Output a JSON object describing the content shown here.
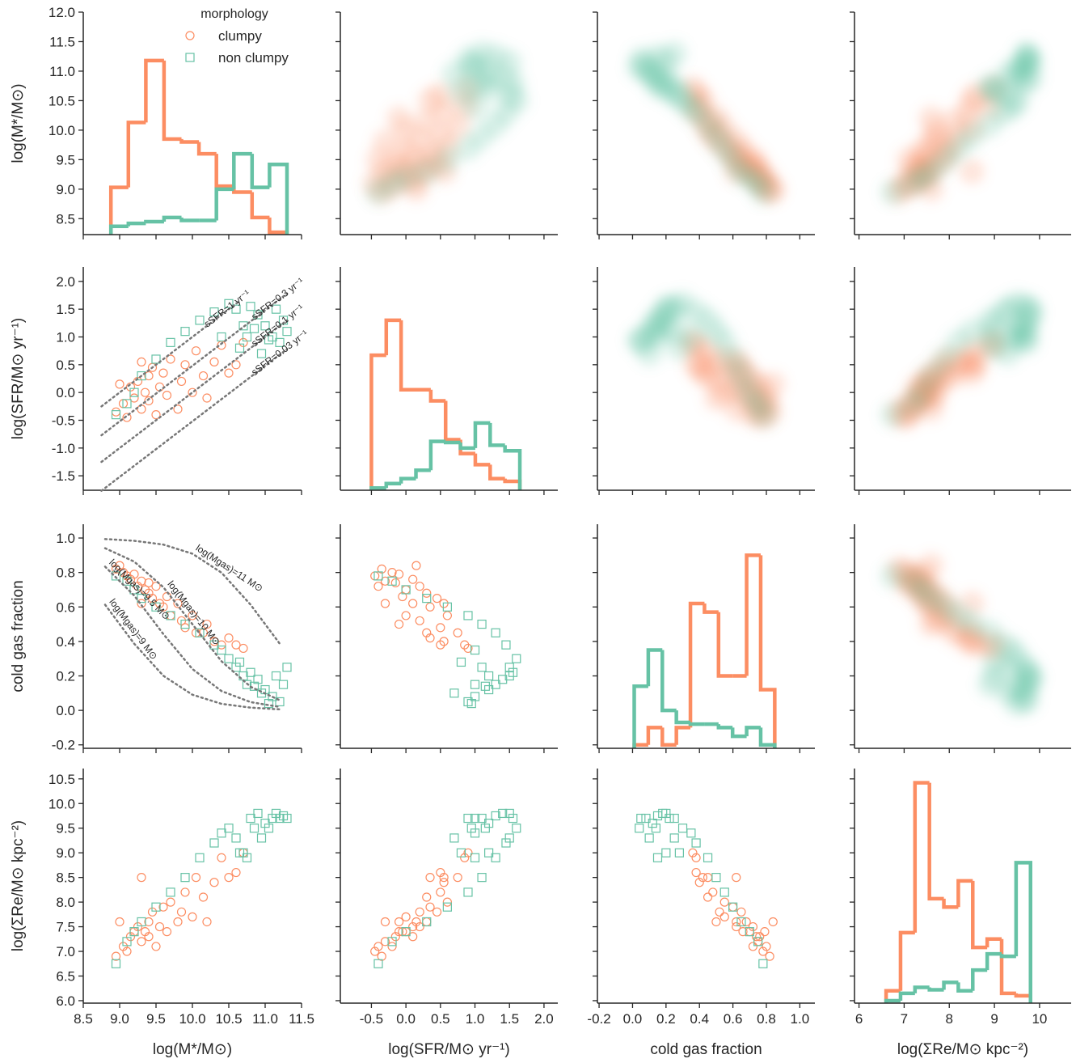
{
  "chart_data": {
    "type": "pairplot",
    "legend_title": "morphology",
    "legend": "upper center",
    "variables": [
      {
        "label": "log(M*/M⊙)",
        "xlim": [
          8.5,
          11.5
        ],
        "ylim": [
          8.23,
          12.0
        ],
        "xticks": [
          8.5,
          {
            "value": 9,
            "label": "9.0"
          },
          9.5,
          {
            "value": 10,
            "label": "10.0"
          },
          10.5,
          {
            "value": 11,
            "label": "11.0"
          },
          11.5
        ],
        "yticks": [
          8.5,
          {
            "value": 9,
            "label": "9.0"
          },
          9.5,
          {
            "value": 10,
            "label": "10.0"
          },
          10.5,
          {
            "value": 11,
            "label": "11.0"
          },
          11.5,
          {
            "value": 12,
            "label": "12.0"
          }
        ],
        "bins": [
          8.88,
          9.12,
          9.36,
          9.61,
          9.85,
          10.09,
          10.33,
          10.57,
          10.82,
          11.06,
          11.3
        ]
      },
      {
        "label": "log(SFR/M⊙ yr⁻¹)",
        "xlim": [
          -0.95,
          2.2
        ],
        "ylim": [
          -1.76,
          2.26
        ],
        "xticks": [
          -0.5,
          {
            "value": 0,
            "label": "0.0"
          },
          0.5,
          {
            "value": 1,
            "label": "1.0"
          },
          1.5,
          {
            "value": 2,
            "label": "2.0"
          }
        ],
        "yticks": [
          -1.5,
          {
            "value": -1,
            "label": "-1.0"
          },
          -0.5,
          {
            "value": 0,
            "label": "0.0"
          },
          0.5,
          {
            "value": 1,
            "label": "1.0"
          },
          1.5,
          {
            "value": 2,
            "label": "2.0"
          }
        ],
        "bins": [
          -0.5,
          -0.285,
          -0.07,
          0.145,
          0.36,
          0.575,
          0.79,
          1.005,
          1.22,
          1.435,
          1.65
        ]
      },
      {
        "label": "cold gas fraction",
        "xlim": [
          -0.21,
          1.09
        ],
        "ylim": [
          -0.22,
          1.08
        ],
        "xticks": [
          -0.2,
          {
            "value": 0,
            "label": "0.0"
          },
          0.2,
          0.4,
          0.6,
          0.8,
          {
            "value": 1,
            "label": "1.0"
          }
        ],
        "yticks": [
          -0.2,
          {
            "value": 0,
            "label": "0.0"
          },
          0.2,
          0.4,
          0.6,
          0.8,
          {
            "value": 1,
            "label": "1.0"
          }
        ],
        "bins": [
          0.01,
          0.094,
          0.178,
          0.262,
          0.346,
          0.43,
          0.514,
          0.598,
          0.682,
          0.766,
          0.85
        ]
      },
      {
        "label": "log(ΣRe/M⊙ kpc⁻²)",
        "xlim": [
          5.9,
          10.7
        ],
        "ylim": [
          5.95,
          10.71
        ],
        "xticks": [
          6,
          7,
          8,
          9,
          10
        ],
        "yticks": [
          {
            "value": 6,
            "label": "6.0"
          },
          6.5,
          {
            "value": 7,
            "label": "7.0"
          },
          7.5,
          {
            "value": 8,
            "label": "8.0"
          },
          8.5,
          {
            "value": 9,
            "label": "9.0"
          },
          9.5,
          {
            "value": 10,
            "label": "10.0"
          },
          10.5
        ],
        "bins": [
          6.6,
          6.92,
          7.24,
          7.56,
          7.88,
          8.2,
          8.52,
          8.84,
          9.16,
          9.48,
          9.8
        ]
      }
    ],
    "series": [
      {
        "name": "clumpy",
        "color": "#fc8d62",
        "marker": "circle",
        "values": [
          [
            8.95,
            -0.35,
            0.82,
            6.9
          ],
          [
            9.05,
            -0.2,
            0.8,
            7.1
          ],
          [
            9.1,
            -0.45,
            0.78,
            7.0
          ],
          [
            9.15,
            0.1,
            0.76,
            7.3
          ],
          [
            9.2,
            -0.1,
            0.79,
            7.4
          ],
          [
            9.25,
            0.2,
            0.72,
            7.5
          ],
          [
            9.3,
            -0.3,
            0.75,
            7.2
          ],
          [
            9.35,
            0.0,
            0.7,
            7.4
          ],
          [
            9.4,
            0.3,
            0.68,
            7.6
          ],
          [
            9.4,
            -0.15,
            0.74,
            7.3
          ],
          [
            9.45,
            0.45,
            0.65,
            7.8
          ],
          [
            9.5,
            -0.4,
            0.72,
            7.1
          ],
          [
            9.55,
            0.1,
            0.62,
            7.5
          ],
          [
            9.6,
            0.35,
            0.6,
            7.9
          ],
          [
            9.65,
            -0.05,
            0.66,
            7.4
          ],
          [
            9.7,
            0.6,
            0.55,
            8.0
          ],
          [
            9.8,
            -0.3,
            0.62,
            7.6
          ],
          [
            9.85,
            0.2,
            0.52,
            7.8
          ],
          [
            9.9,
            0.5,
            0.48,
            8.2
          ],
          [
            10.0,
            0.0,
            0.55,
            7.7
          ],
          [
            10.05,
            0.75,
            0.45,
            8.5
          ],
          [
            10.15,
            0.3,
            0.45,
            8.1
          ],
          [
            10.2,
            -0.1,
            0.5,
            7.6
          ],
          [
            10.3,
            0.55,
            0.4,
            8.4
          ],
          [
            10.4,
            0.85,
            0.38,
            8.9
          ],
          [
            10.5,
            0.35,
            0.42,
            8.5
          ],
          [
            10.6,
            0.5,
            0.38,
            8.6
          ],
          [
            9.0,
            0.15,
            0.84,
            7.6
          ],
          [
            9.3,
            0.55,
            0.62,
            8.5
          ],
          [
            10.7,
            0.9,
            0.36,
            9.0
          ]
        ],
        "hist": [
          [
            9.03,
            10.13,
            11.18,
            9.85,
            9.8,
            9.6,
            9.05,
            8.95,
            8.52,
            8.27
          ],
          [
            0.67,
            1.3,
            0.05,
            0.05,
            -0.15,
            -0.85,
            -1.1,
            -1.3,
            -1.55,
            -1.6
          ],
          [
            -0.2,
            -0.1,
            -0.2,
            -0.1,
            0.62,
            0.57,
            0.2,
            0.2,
            0.9,
            0.12
          ],
          [
            6.2,
            7.38,
            10.42,
            8.07,
            7.9,
            8.43,
            7.08,
            7.25,
            6.15,
            6.1
          ]
        ]
      },
      {
        "name": "non clumpy",
        "color": "#66c2a5",
        "marker": "square",
        "values": [
          [
            8.95,
            -0.4,
            0.78,
            6.75
          ],
          [
            9.1,
            -0.2,
            0.75,
            7.2
          ],
          [
            9.3,
            0.3,
            0.65,
            7.6
          ],
          [
            9.5,
            0.6,
            0.6,
            7.9
          ],
          [
            9.7,
            0.9,
            0.55,
            8.2
          ],
          [
            9.9,
            1.1,
            0.5,
            8.5
          ],
          [
            10.1,
            1.3,
            0.45,
            8.9
          ],
          [
            10.3,
            1.45,
            0.38,
            9.2
          ],
          [
            10.5,
            1.6,
            0.3,
            9.5
          ],
          [
            10.6,
            1.5,
            0.25,
            9.3
          ],
          [
            10.7,
            1.2,
            0.2,
            9.0
          ],
          [
            10.75,
            1.0,
            0.15,
            8.9
          ],
          [
            10.8,
            1.55,
            0.22,
            9.7
          ],
          [
            10.9,
            1.4,
            0.18,
            9.8
          ],
          [
            11.0,
            1.2,
            0.12,
            9.6
          ],
          [
            11.1,
            1.0,
            0.08,
            9.7
          ],
          [
            11.2,
            0.9,
            0.05,
            9.7
          ],
          [
            11.25,
            1.3,
            0.15,
            9.75
          ],
          [
            11.3,
            1.1,
            0.25,
            9.7
          ],
          [
            10.65,
            0.8,
            0.28,
            9.0
          ],
          [
            10.95,
            0.7,
            0.1,
            9.3
          ],
          [
            11.15,
            1.5,
            0.2,
            9.8
          ],
          [
            10.4,
            1.0,
            0.35,
            9.4
          ],
          [
            11.05,
            0.95,
            0.04,
            9.5
          ],
          [
            10.85,
            1.15,
            0.14,
            9.5
          ],
          [
            9.2,
            0.0,
            0.7,
            7.4
          ]
        ],
        "hist": [
          [
            8.37,
            8.42,
            8.45,
            8.52,
            8.47,
            8.47,
            9.0,
            9.6,
            9.03,
            9.42
          ],
          [
            -1.72,
            -1.64,
            -1.55,
            -1.4,
            -0.88,
            -0.9,
            -1.0,
            -0.55,
            -0.95,
            -1.05
          ],
          [
            0.14,
            0.35,
            0.0,
            -0.07,
            -0.08,
            -0.08,
            -0.1,
            -0.15,
            -0.1,
            -0.2
          ],
          [
            6.0,
            6.15,
            6.27,
            6.22,
            6.37,
            6.2,
            6.62,
            6.95,
            6.9,
            8.8
          ]
        ]
      }
    ],
    "ssfr_lines": [
      {
        "label": "sSFR=1 yr⁻¹",
        "x": [
          8.75,
          10.65
        ],
        "y": [
          -0.25,
          1.65
        ]
      },
      {
        "label": "sSFR=0.3 yr⁻¹",
        "x": [
          8.75,
          11.3
        ],
        "y": [
          -0.77,
          1.78
        ]
      },
      {
        "label": "sSFR=0.1 yr⁻¹",
        "x": [
          8.75,
          11.3
        ],
        "y": [
          -1.25,
          1.3
        ]
      },
      {
        "label": "sSFR=0.03 yr⁻¹",
        "x": [
          8.75,
          11.3
        ],
        "y": [
          -1.77,
          0.78
        ]
      }
    ],
    "gas_curves": [
      {
        "label": "log(Mgas)=11 M⊙",
        "x": [
          8.8,
          9.2,
          9.6,
          10.0,
          10.4,
          10.8,
          11.2
        ],
        "y": [
          0.994,
          0.984,
          0.962,
          0.909,
          0.799,
          0.613,
          0.387
        ]
      },
      {
        "label": "log(Mgas)=10 M⊙",
        "x": [
          8.8,
          9.2,
          9.6,
          10.0,
          10.4,
          10.8,
          11.2
        ],
        "y": [
          0.941,
          0.863,
          0.715,
          0.5,
          0.285,
          0.137,
          0.059
        ]
      },
      {
        "label": "log(Mgas)=9.5 M⊙",
        "x": [
          8.8,
          9.2,
          9.6,
          10.0,
          10.4,
          10.8,
          11.2
        ],
        "y": [
          0.834,
          0.666,
          0.443,
          0.24,
          0.112,
          0.048,
          0.02
        ]
      },
      {
        "label": "log(Mgas)=9 M⊙",
        "x": [
          8.8,
          9.2,
          9.6,
          10.0,
          10.4,
          10.8,
          11.2
        ],
        "y": [
          0.613,
          0.387,
          0.201,
          0.091,
          0.038,
          0.016,
          0.006
        ]
      }
    ]
  }
}
